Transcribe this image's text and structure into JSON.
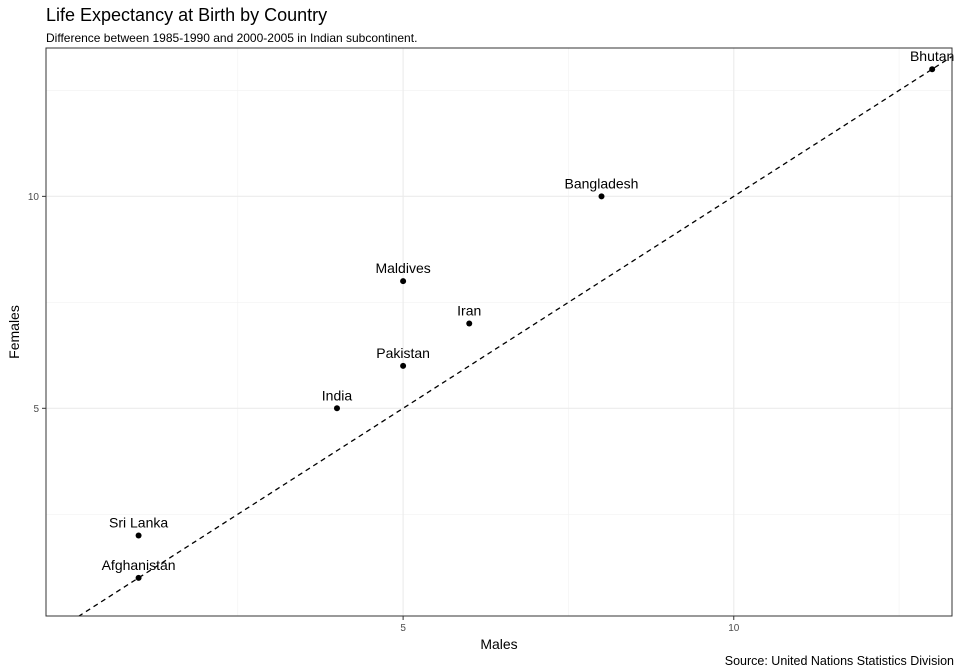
{
  "chart_data": {
    "type": "scatter",
    "title": "Life Expectancy at Birth by Country",
    "subtitle": "Difference between 1985-1990 and 2000-2005 in Indian subcontinent.",
    "caption": "Source: United Nations Statistics Division",
    "xlabel": "Males",
    "ylabel": "Females",
    "xlim": [
      -0.4,
      13.3
    ],
    "ylim": [
      0.1,
      13.5
    ],
    "xticks": [
      5,
      10
    ],
    "yticks": [
      5,
      10
    ],
    "grid": true,
    "reference_line": "y = x",
    "points": [
      {
        "label": "Afghanistan",
        "x": 1,
        "y": 1
      },
      {
        "label": "Sri Lanka",
        "x": 1,
        "y": 2
      },
      {
        "label": "India",
        "x": 4,
        "y": 5
      },
      {
        "label": "Pakistan",
        "x": 5,
        "y": 6
      },
      {
        "label": "Maldives",
        "x": 5,
        "y": 8
      },
      {
        "label": "Iran",
        "x": 6,
        "y": 7
      },
      {
        "label": "Bangladesh",
        "x": 8,
        "y": 10
      },
      {
        "label": "Bhutan",
        "x": 13,
        "y": 13
      }
    ]
  }
}
